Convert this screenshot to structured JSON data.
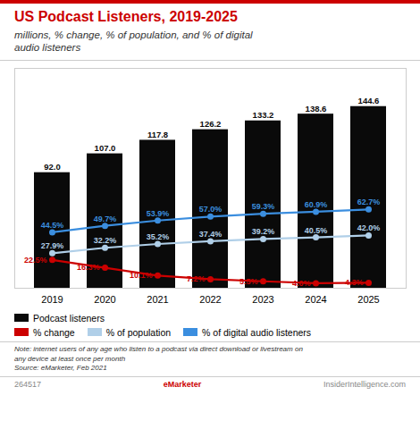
{
  "chart_data": {
    "type": "bar",
    "title": "US Podcast Listeners, 2019-2025",
    "subtitle": "millions, % change, % of population, and % of digital\naudio listeners",
    "categories": [
      "2019",
      "2020",
      "2021",
      "2022",
      "2023",
      "2024",
      "2025"
    ],
    "series": [
      {
        "name": "Podcast listeners",
        "type": "bar",
        "color": "#0a0a0a",
        "values": [
          92.0,
          107.0,
          117.8,
          126.2,
          133.2,
          138.6,
          144.6
        ],
        "value_labels": [
          "92.0",
          "107.0",
          "117.8",
          "126.2",
          "133.2",
          "138.6",
          "144.6"
        ]
      },
      {
        "name": "% change",
        "type": "line",
        "color": "#cc0000",
        "marker": "circle",
        "values": [
          22.5,
          16.3,
          10.1,
          7.2,
          5.5,
          4.0,
          4.3
        ],
        "value_labels": [
          "22.5%",
          "16.3%",
          "10.1%",
          "7.2%",
          "5.5%",
          "4.0%",
          "4.3%"
        ]
      },
      {
        "name": "% of population",
        "type": "line",
        "color": "#b0cfe8",
        "marker": "circle",
        "values": [
          27.9,
          32.2,
          35.2,
          37.4,
          39.2,
          40.5,
          42.0
        ],
        "value_labels": [
          "27.9%",
          "32.2%",
          "35.2%",
          "37.4%",
          "39.2%",
          "40.5%",
          "42.0%"
        ]
      },
      {
        "name": "% of digital audio listeners",
        "type": "line",
        "color": "#3b8edf",
        "marker": "circle",
        "values": [
          44.5,
          49.7,
          53.9,
          57.0,
          59.3,
          60.9,
          62.7
        ],
        "value_labels": [
          "44.5%",
          "49.7%",
          "53.9%",
          "57.0%",
          "59.3%",
          "60.9%",
          "62.7%"
        ]
      }
    ],
    "ylim": [
      0,
      175
    ],
    "yticks": [],
    "tick_labels": "x",
    "data_labels": true,
    "legend": "bottom",
    "annotations": [
      "Note: internet users of any age who listen to a podcast via direct download or livestream on\nany device at least once per month\nSource: eMarketer, Feb 2021",
      "264517",
      "eMarketer",
      "InsiderIntelligence.com"
    ]
  }
}
